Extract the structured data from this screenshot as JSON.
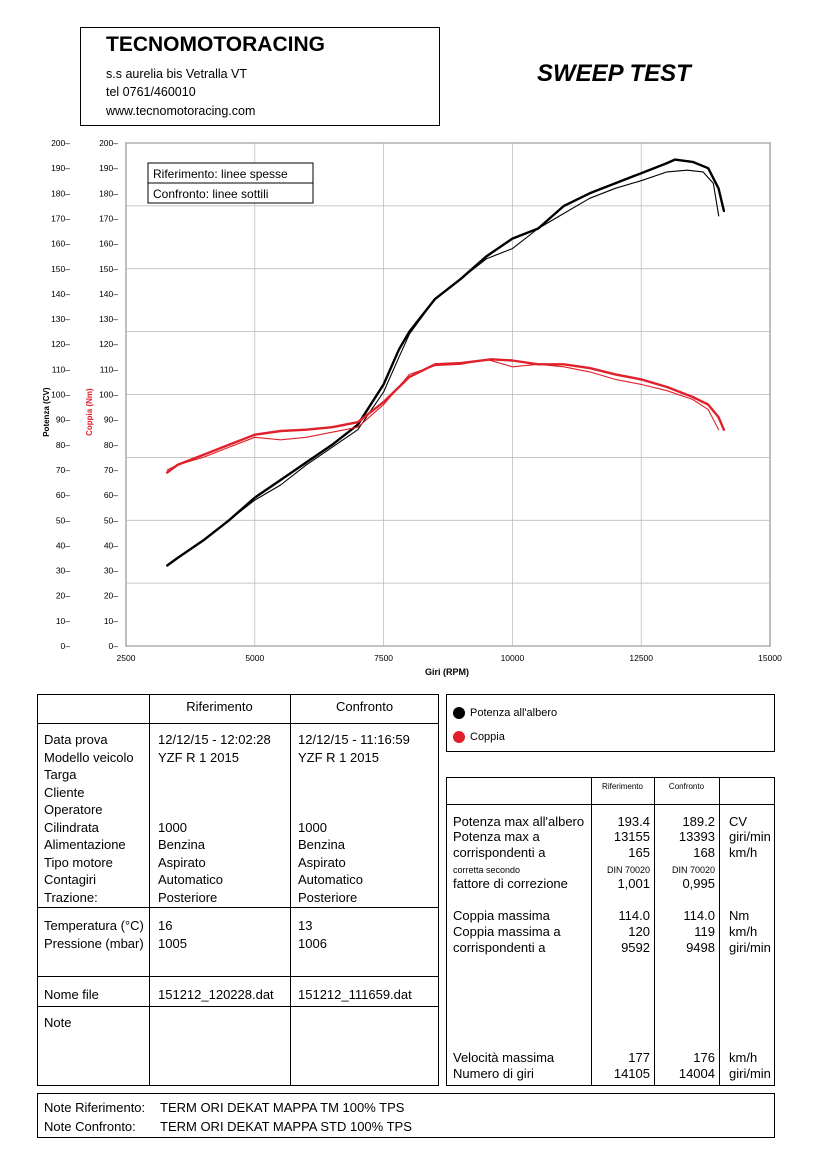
{
  "header": {
    "company": "TECNOMOTORACING",
    "address": "s.s aurelia bis  Vetralla  VT",
    "phone": "tel  0761/460010",
    "website": "www.tecnomotoracing.com",
    "test_title": "SWEEP TEST"
  },
  "chart_data": {
    "type": "line",
    "xlabel": "Giri (RPM)",
    "ylabel_left": "Potenza (CV)",
    "ylabel_right": "Coppia (Nm)",
    "xlim": [
      2500,
      15000
    ],
    "ylim": [
      0,
      200
    ],
    "x_ticks": [
      2500,
      5000,
      7500,
      10000,
      12500,
      15000
    ],
    "y_ticks": [
      0,
      10,
      20,
      30,
      40,
      50,
      60,
      70,
      80,
      90,
      100,
      110,
      120,
      130,
      140,
      150,
      160,
      170,
      180,
      190,
      200
    ],
    "grid": true,
    "legend_lines": [
      "Riferimento: linee spesse",
      "Confronto: linee sottili"
    ],
    "legend_placement": "top-left",
    "series": [
      {
        "name": "Potenza all'albero",
        "color": "#000000",
        "run": "Riferimento",
        "thick": true,
        "x": [
          3300,
          3500,
          4000,
          4500,
          5000,
          5500,
          6000,
          6500,
          7000,
          7500,
          7800,
          8000,
          8500,
          9000,
          9500,
          10000,
          10500,
          11000,
          11500,
          12000,
          12500,
          13000,
          13155,
          13500,
          13800,
          14000,
          14105
        ],
        "y": [
          32,
          35,
          42,
          50,
          59,
          66,
          73,
          80,
          88,
          104,
          118,
          125,
          138,
          146,
          155,
          162,
          166,
          175,
          180,
          184,
          188,
          192,
          193.4,
          192.5,
          190,
          182,
          173
        ]
      },
      {
        "name": "Potenza all'albero",
        "color": "#000000",
        "run": "Confronto",
        "thick": false,
        "x": [
          3300,
          3500,
          4000,
          4500,
          5000,
          5500,
          6000,
          6500,
          7000,
          7500,
          7800,
          8000,
          8500,
          9000,
          9500,
          10000,
          10500,
          11000,
          11500,
          12000,
          12500,
          13000,
          13393,
          13700,
          13900,
          14004
        ],
        "y": [
          32,
          35,
          42,
          50,
          58,
          64,
          72,
          79,
          86,
          101,
          115,
          124,
          138,
          146,
          154,
          158,
          166,
          172,
          178,
          182,
          185,
          188.5,
          189.2,
          188.5,
          184,
          171
        ]
      },
      {
        "name": "Coppia",
        "color": "#e0202a",
        "run": "Riferimento",
        "thick": true,
        "x": [
          3300,
          3500,
          4000,
          4500,
          5000,
          5500,
          6000,
          6500,
          7000,
          7500,
          8000,
          8500,
          9000,
          9592,
          10000,
          10500,
          11000,
          11500,
          12000,
          12500,
          13000,
          13500,
          13800,
          14000,
          14105
        ],
        "y": [
          69,
          72,
          76,
          80,
          84,
          85.5,
          86,
          87,
          89,
          97,
          107,
          112,
          112.5,
          114,
          113.5,
          112,
          112,
          110.5,
          108,
          106,
          103,
          99,
          96,
          91,
          86
        ]
      },
      {
        "name": "Coppia",
        "color": "#e0202a",
        "run": "Confronto",
        "thick": false,
        "x": [
          3300,
          3500,
          4000,
          4500,
          5000,
          5500,
          6000,
          6500,
          7000,
          7500,
          8000,
          8500,
          9000,
          9498,
          10000,
          10500,
          11000,
          11500,
          12000,
          12500,
          13000,
          13500,
          13800,
          14004
        ],
        "y": [
          70,
          72,
          75,
          79,
          83,
          82,
          83,
          85,
          87,
          96,
          108,
          111.5,
          112,
          114,
          111,
          112,
          111,
          109,
          106,
          104,
          101.5,
          98,
          94,
          86
        ]
      }
    ]
  },
  "legend": [
    {
      "label": "Potenza all'albero",
      "color": "#000000"
    },
    {
      "label": "Coppia",
      "color": "#e0202a"
    }
  ],
  "info_table": {
    "col_headers": [
      "Riferimento",
      "Confronto"
    ],
    "group1": {
      "labels": [
        "Data prova",
        "Modello veicolo",
        "Targa",
        "Cliente",
        "Operatore",
        "Cilindrata",
        "Alimentazione",
        "Tipo motore",
        "Contagiri",
        "Trazione:"
      ],
      "ref": [
        "12/12/15 - 12:02:28",
        "YZF R 1 2015",
        "",
        "",
        "",
        "1000",
        "Benzina",
        "Aspirato",
        "Automatico",
        "Posteriore"
      ],
      "cmp": [
        "12/12/15 - 11:16:59",
        "YZF R 1 2015",
        "",
        "",
        "",
        "1000",
        "Benzina",
        "Aspirato",
        "Automatico",
        "Posteriore"
      ]
    },
    "group2": {
      "labels": [
        "Temperatura (°C)",
        "Pressione (mbar)"
      ],
      "ref": [
        "16",
        "1005"
      ],
      "cmp": [
        "13",
        "1006"
      ]
    },
    "file": {
      "label": "Nome file",
      "ref": "151212_120228.dat",
      "cmp": "151212_111659.dat"
    },
    "note_label": "Note"
  },
  "results": {
    "col_headers": [
      "Riferimento",
      "Confronto"
    ],
    "rows": [
      {
        "label": "Potenza max all'albero",
        "ref": "193.4",
        "cmp": "189.2",
        "unit": "CV"
      },
      {
        "label": "Potenza max a",
        "ref": "13155",
        "cmp": "13393",
        "unit": "giri/min"
      },
      {
        "label": "corrispondenti a",
        "ref": "165",
        "cmp": "168",
        "unit": "km/h"
      },
      {
        "label": "corretta secondo",
        "ref": "DIN 70020",
        "cmp": "DIN 70020",
        "unit": "",
        "small": true
      },
      {
        "label": "fattore di correzione",
        "ref": "1,001",
        "cmp": "0,995",
        "unit": ""
      },
      {
        "label": "Coppia massima",
        "ref": "114.0",
        "cmp": "114.0",
        "unit": "Nm"
      },
      {
        "label": "Coppia massima a",
        "ref": "120",
        "cmp": "119",
        "unit": "km/h"
      },
      {
        "label": "corrispondenti a",
        "ref": "9592",
        "cmp": "9498",
        "unit": "giri/min"
      },
      {
        "label": "Velocità massima",
        "ref": "177",
        "cmp": "176",
        "unit": "km/h"
      },
      {
        "label": "Numero di giri",
        "ref": "14105",
        "cmp": "14004",
        "unit": "giri/min"
      }
    ]
  },
  "notes": {
    "ref_label": "Note Riferimento:",
    "ref_text": "TERM ORI DEKAT MAPPA TM 100% TPS",
    "cmp_label": "Note Confronto:",
    "cmp_text": "TERM ORI DEKAT MAPPA STD 100% TPS"
  }
}
